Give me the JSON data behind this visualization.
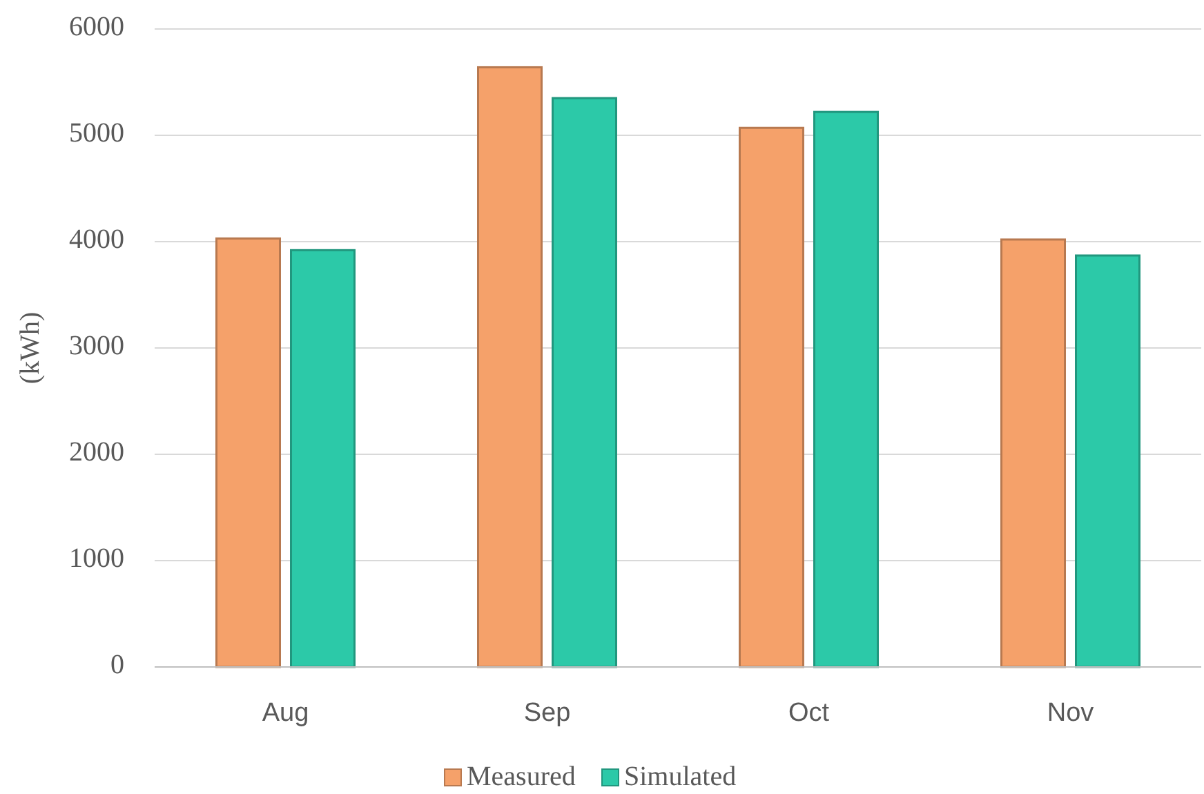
{
  "chart_data": {
    "type": "bar",
    "ylabel": "(kWh)",
    "categories": [
      "Aug",
      "Sep",
      "Oct",
      "Nov"
    ],
    "series": [
      {
        "name": "Measured",
        "color": "#f5a16a",
        "values": [
          4030,
          5640,
          5070,
          4020
        ]
      },
      {
        "name": "Simulated",
        "color": "#2cc9a8",
        "values": [
          3920,
          5350,
          5220,
          3870
        ]
      }
    ],
    "ylim": [
      0,
      6000
    ],
    "yticks": [
      0,
      1000,
      2000,
      3000,
      4000,
      5000,
      6000
    ],
    "grid": "y",
    "legend": "bottom"
  }
}
